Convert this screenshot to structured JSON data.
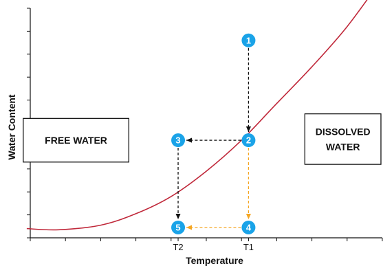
{
  "chart_data": {
    "type": "line",
    "title": "",
    "xlabel": "Temperature",
    "ylabel": "Water Content",
    "xlim": [
      0,
      10
    ],
    "ylim": [
      0,
      10
    ],
    "grid": false,
    "x_tick_labels": [
      {
        "x": 4.2,
        "label": "T2"
      },
      {
        "x": 6.2,
        "label": "T1"
      }
    ],
    "x_minor_ticks": [
      0,
      1,
      2,
      3,
      4,
      4.2,
      5,
      6,
      6.2,
      7,
      8,
      9,
      10
    ],
    "y_minor_ticks": [
      0,
      1,
      2,
      3,
      4,
      5,
      6,
      7,
      8,
      9,
      10
    ],
    "series": [
      {
        "kind": "saturation-curve",
        "color": "#c0283a",
        "x": [
          -0.1,
          0.8,
          2,
          3,
          4,
          5,
          6,
          7,
          8,
          9,
          10
        ],
        "y": [
          0.4,
          0.35,
          0.55,
          1.05,
          1.8,
          2.9,
          4.25,
          5.85,
          7.45,
          9.2,
          11.3
        ]
      }
    ],
    "points": [
      {
        "label": "1",
        "x": 6.2,
        "y": 8.6
      },
      {
        "label": "2",
        "x": 6.2,
        "y": 4.25
      },
      {
        "label": "3",
        "x": 4.2,
        "y": 4.25
      },
      {
        "label": "4",
        "x": 6.2,
        "y": 0.45
      },
      {
        "label": "5",
        "x": 4.2,
        "y": 0.45
      }
    ],
    "marker_color": "#1aa3e8",
    "paths": [
      {
        "from": "1",
        "to": "2",
        "color": "#111111"
      },
      {
        "from": "2",
        "to": "3",
        "color": "#111111"
      },
      {
        "from": "3",
        "to": "5",
        "color": "#111111"
      },
      {
        "from": "2",
        "to": "4",
        "color": "#f5a623"
      },
      {
        "from": "4",
        "to": "5",
        "color": "#f5a623"
      }
    ],
    "annotations": [
      {
        "id": "free-water",
        "lines": [
          "FREE WATER"
        ],
        "x0": -0.2,
        "x1": 2.8,
        "y0": 3.3,
        "y1": 5.2
      },
      {
        "id": "dissolved-water",
        "lines": [
          "DISSOLVED",
          "WATER"
        ],
        "x0": 7.8,
        "x1": 10,
        "y0": 3.2,
        "y1": 5.4
      }
    ]
  }
}
